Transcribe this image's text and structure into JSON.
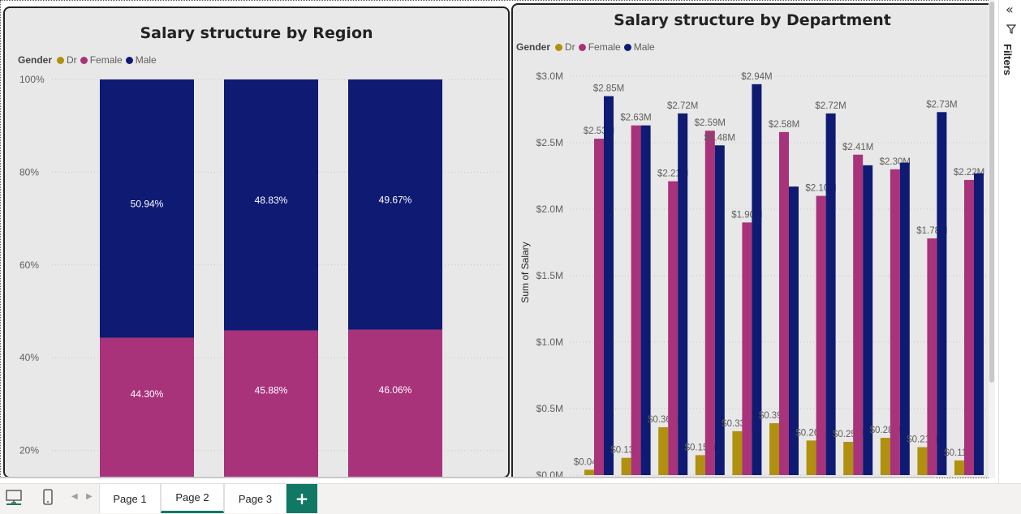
{
  "legend": {
    "title": "Gender",
    "items": [
      {
        "label": "Dr",
        "color": "#b0900e"
      },
      {
        "label": "Female",
        "color": "#a8337a"
      },
      {
        "label": "Male",
        "color": "#0f1a73"
      }
    ]
  },
  "filters": {
    "label": "Filters"
  },
  "pages": {
    "tabs": [
      "Page 1",
      "Page 2",
      "Page 3"
    ],
    "active": "Page 2",
    "add_label": "+"
  },
  "chart_data": [
    {
      "type": "bar",
      "stacked": "100%",
      "title": "Salary structure by Region",
      "ylim": [
        0,
        100
      ],
      "y_ticks": [
        "100%",
        "80%",
        "60%",
        "40%",
        "20%"
      ],
      "grid": true,
      "legend": "top-left",
      "categories": [
        "",
        "",
        ""
      ],
      "series": [
        {
          "name": "Female",
          "values": [
            44.3,
            45.88,
            46.06
          ],
          "labels": [
            "44.30%",
            "45.88%",
            "46.06%"
          ]
        },
        {
          "name": "Male",
          "values": [
            50.94,
            48.83,
            49.67
          ],
          "labels": [
            "50.94%",
            "48.83%",
            "49.67%"
          ]
        }
      ]
    },
    {
      "type": "bar",
      "title": "Salary structure by Department",
      "ylabel": "Sum of Salary",
      "ylim": [
        0,
        3.0
      ],
      "y_ticks": [
        {
          "value": 3.0,
          "label": "$3.0M"
        },
        {
          "value": 2.5,
          "label": "$2.5M"
        },
        {
          "value": 2.0,
          "label": "$2.0M"
        },
        {
          "value": 1.5,
          "label": "$1.5M"
        },
        {
          "value": 1.0,
          "label": "$1.0M"
        },
        {
          "value": 0.5,
          "label": "$0.5M"
        },
        {
          "value": 0.0,
          "label": "$0.0M"
        }
      ],
      "grid": true,
      "legend": "top-left",
      "series": [
        {
          "name": "Dr",
          "values": [
            0.04,
            0.13,
            0.36,
            0.15,
            0.33,
            0.39,
            0.26,
            0.25,
            0.28,
            0.21,
            0.11
          ],
          "labels": [
            "$0.04M",
            "$0.13M",
            "$0.36M",
            "$0.15M",
            "$0.33M",
            "$0.39M",
            "$0.26M",
            "$0.25M",
            "$0.28M",
            "$0.21M",
            "$0.11M"
          ]
        },
        {
          "name": "Female",
          "values": [
            2.53,
            2.63,
            2.21,
            2.59,
            1.9,
            2.58,
            2.1,
            2.41,
            2.3,
            1.78,
            2.22
          ],
          "labels": [
            "$2.53M",
            "$2.63M",
            "$2.21M",
            "$2.59M",
            "$1.90M",
            "$2.58M",
            "$2.10M",
            "$2.41M",
            "$2.30M",
            "$1.78M",
            "$2.22M"
          ]
        },
        {
          "name": "Male",
          "values": [
            2.85,
            2.63,
            2.72,
            2.48,
            2.94,
            2.17,
            2.72,
            2.33,
            2.35,
            2.73,
            2.27
          ],
          "labels": [
            "$2.85M",
            "",
            "$2.72M",
            "$2.48M",
            "$2.94M",
            "",
            "$2.72M",
            "",
            "",
            "$2.73M",
            ""
          ]
        }
      ]
    }
  ]
}
